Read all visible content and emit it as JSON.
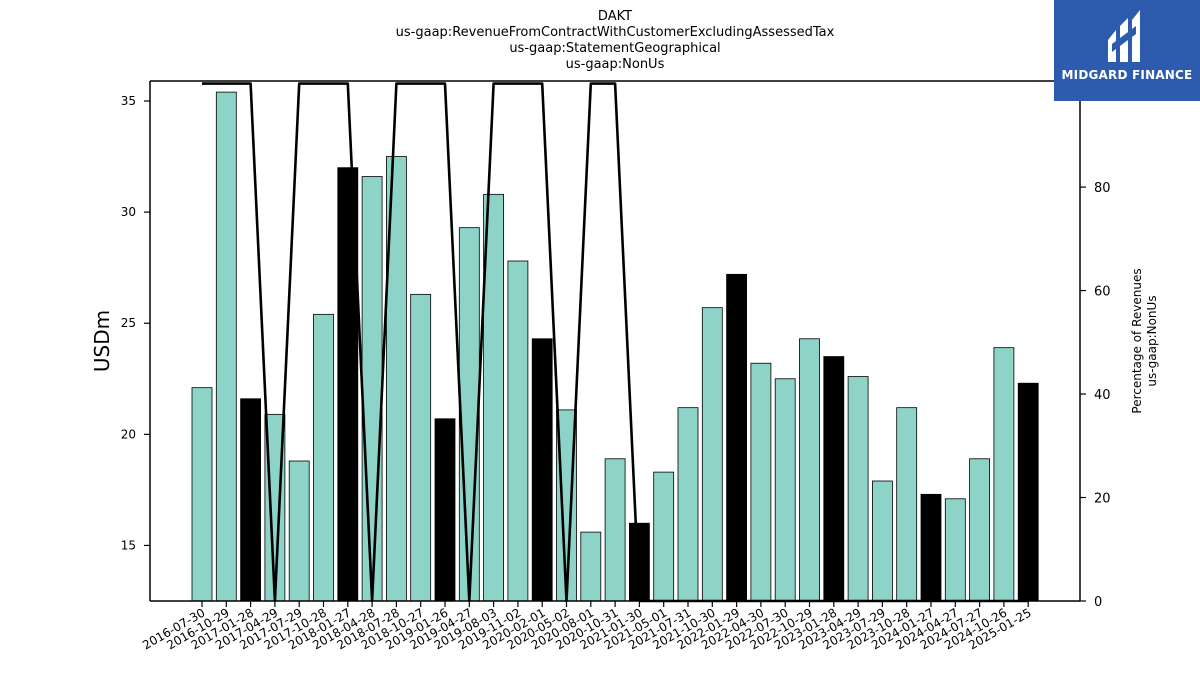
{
  "brand": {
    "name": "MIDGARD FINANCE",
    "bg_color": "#2d5cae"
  },
  "chart_data": {
    "type": "bar",
    "title_lines": [
      "DAKT",
      "us-gaap:RevenueFromContractWithCustomerExcludingAssessedTax",
      "us-gaap:StatementGeographical",
      "us-gaap:NonUs"
    ],
    "ylabel": "USDm",
    "y2label_lines": [
      "Percentage of Revenues",
      "us-gaap:NonUs"
    ],
    "ylim": [
      12.5,
      35.9
    ],
    "y2lim": [
      0,
      100.5
    ],
    "yticks": [
      15,
      20,
      25,
      30,
      35
    ],
    "y2ticks": [
      0,
      20,
      40,
      60,
      80,
      100
    ],
    "colors": {
      "regular": "#8dd3c7",
      "highlight": "#000000",
      "line": "#000000"
    },
    "categories": [
      "2016-07-30",
      "2016-10-29",
      "2017-01-28",
      "2017-04-29",
      "2017-07-29",
      "2017-10-28",
      "2018-01-27",
      "2018-04-28",
      "2018-07-28",
      "2018-10-27",
      "2019-01-26",
      "2019-04-27",
      "2019-08-03",
      "2019-11-02",
      "2020-02-01",
      "2020-05-02",
      "2020-08-01",
      "2020-10-31",
      "2021-01-30",
      "2021-05-01",
      "2021-07-31",
      "2021-10-30",
      "2022-01-29",
      "2022-04-30",
      "2022-07-30",
      "2022-10-29",
      "2023-01-28",
      "2023-04-29",
      "2023-07-29",
      "2023-10-28",
      "2024-01-27",
      "2024-04-27",
      "2024-07-27",
      "2024-10-26",
      "2025-01-25"
    ],
    "values": [
      22.1,
      35.4,
      21.6,
      20.9,
      18.8,
      25.4,
      32.0,
      31.6,
      32.5,
      26.3,
      20.7,
      29.3,
      30.8,
      27.8,
      24.3,
      21.1,
      15.6,
      18.9,
      16.0,
      18.3,
      21.2,
      25.7,
      27.2,
      23.2,
      22.5,
      24.3,
      23.5,
      22.6,
      17.9,
      21.2,
      17.3,
      17.1,
      18.9,
      23.9,
      22.3
    ],
    "highlight": [
      false,
      false,
      true,
      false,
      false,
      false,
      true,
      false,
      false,
      false,
      true,
      false,
      false,
      false,
      true,
      false,
      false,
      false,
      true,
      false,
      false,
      false,
      true,
      false,
      false,
      false,
      true,
      false,
      false,
      false,
      true,
      false,
      false,
      false,
      true
    ],
    "line_values": [
      100,
      100,
      100,
      0,
      100,
      100,
      100,
      0,
      100,
      100,
      100,
      0,
      100,
      100,
      100,
      0,
      100,
      100,
      0,
      0,
      0,
      0,
      0,
      0,
      0,
      0,
      0,
      0,
      0,
      0,
      0,
      0,
      0,
      0,
      0
    ]
  }
}
